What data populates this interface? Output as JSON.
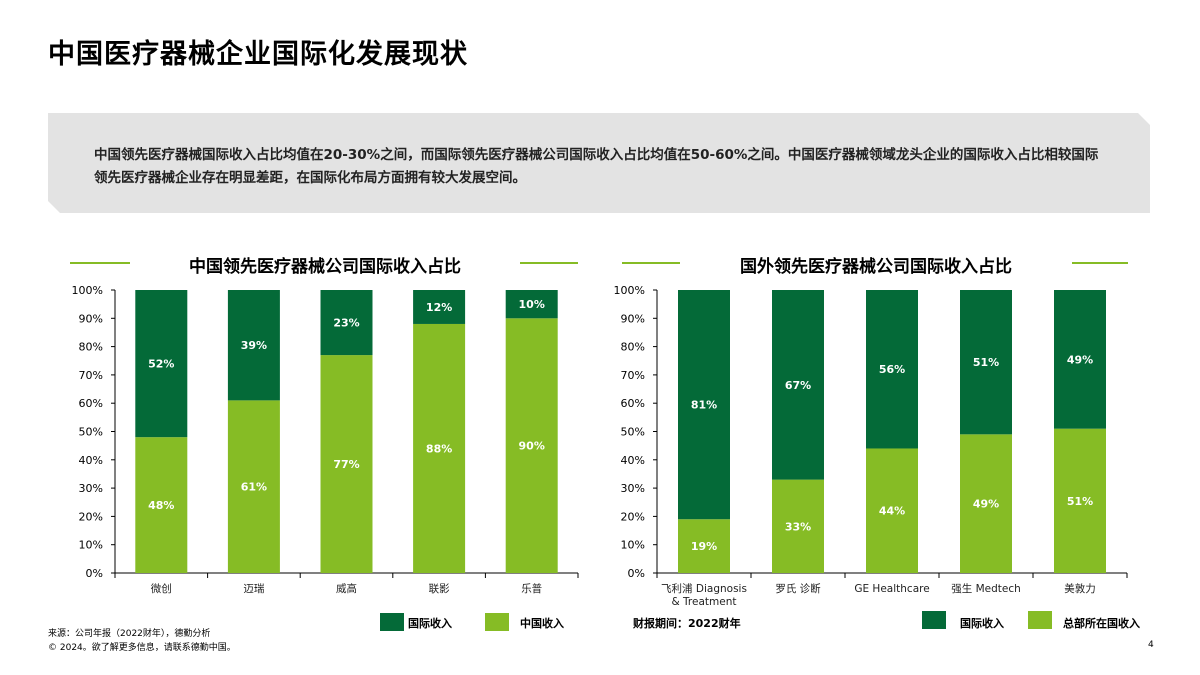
{
  "title": "中国医疗器械企业国际化发展现状",
  "summary": "中国领先医疗器械国际收入占比均值在20-30%之间，而国际领先医疗器械公司国际收入占比均值在50-60%之间。中国医疗器械领域龙头企业的国际收入占比相较国际领先医疗器械企业存在明显差距，在国际化布局方面拥有较大发展空间。",
  "colors": {
    "dark": "#046A38",
    "light": "#86BC25"
  },
  "chart_data": [
    {
      "type": "bar",
      "stacked": true,
      "title": "中国领先医疗器械公司国际收入占比",
      "categories": [
        "微创",
        "迈瑞",
        "威高",
        "联影",
        "乐普"
      ],
      "series": [
        {
          "name": "中国收入",
          "values": [
            48,
            61,
            77,
            88,
            90
          ],
          "color": "#86BC25"
        },
        {
          "name": "国际收入",
          "values": [
            52,
            39,
            23,
            12,
            10
          ],
          "color": "#046A38"
        }
      ],
      "ylim": [
        0,
        100
      ],
      "yticks": [
        "0%",
        "10%",
        "20%",
        "30%",
        "40%",
        "50%",
        "60%",
        "70%",
        "80%",
        "90%",
        "100%"
      ],
      "legend": "bottom-right"
    },
    {
      "type": "bar",
      "stacked": true,
      "title": "国外领先医疗器械公司国际收入占比",
      "categories": [
        "飞利浦 Diagnosis & Treatment",
        "罗氏 诊断",
        "GE Healthcare",
        "强生 Medtech",
        "美敦力"
      ],
      "series": [
        {
          "name": "总部所在国收入",
          "values": [
            19,
            33,
            44,
            49,
            51
          ],
          "color": "#86BC25"
        },
        {
          "name": "国际收入",
          "values": [
            81,
            67,
            56,
            51,
            49
          ],
          "color": "#046A38"
        }
      ],
      "ylim": [
        0,
        100
      ],
      "yticks": [
        "0%",
        "10%",
        "20%",
        "30%",
        "40%",
        "50%",
        "60%",
        "70%",
        "80%",
        "90%",
        "100%"
      ],
      "legend": "bottom-right"
    }
  ],
  "period": "财报期间：2022财年",
  "source": "来源：公司年报（2022财年），德勤分析",
  "copyright": "© 2024。欲了解更多信息，请联系德勤中国。",
  "page": "4"
}
